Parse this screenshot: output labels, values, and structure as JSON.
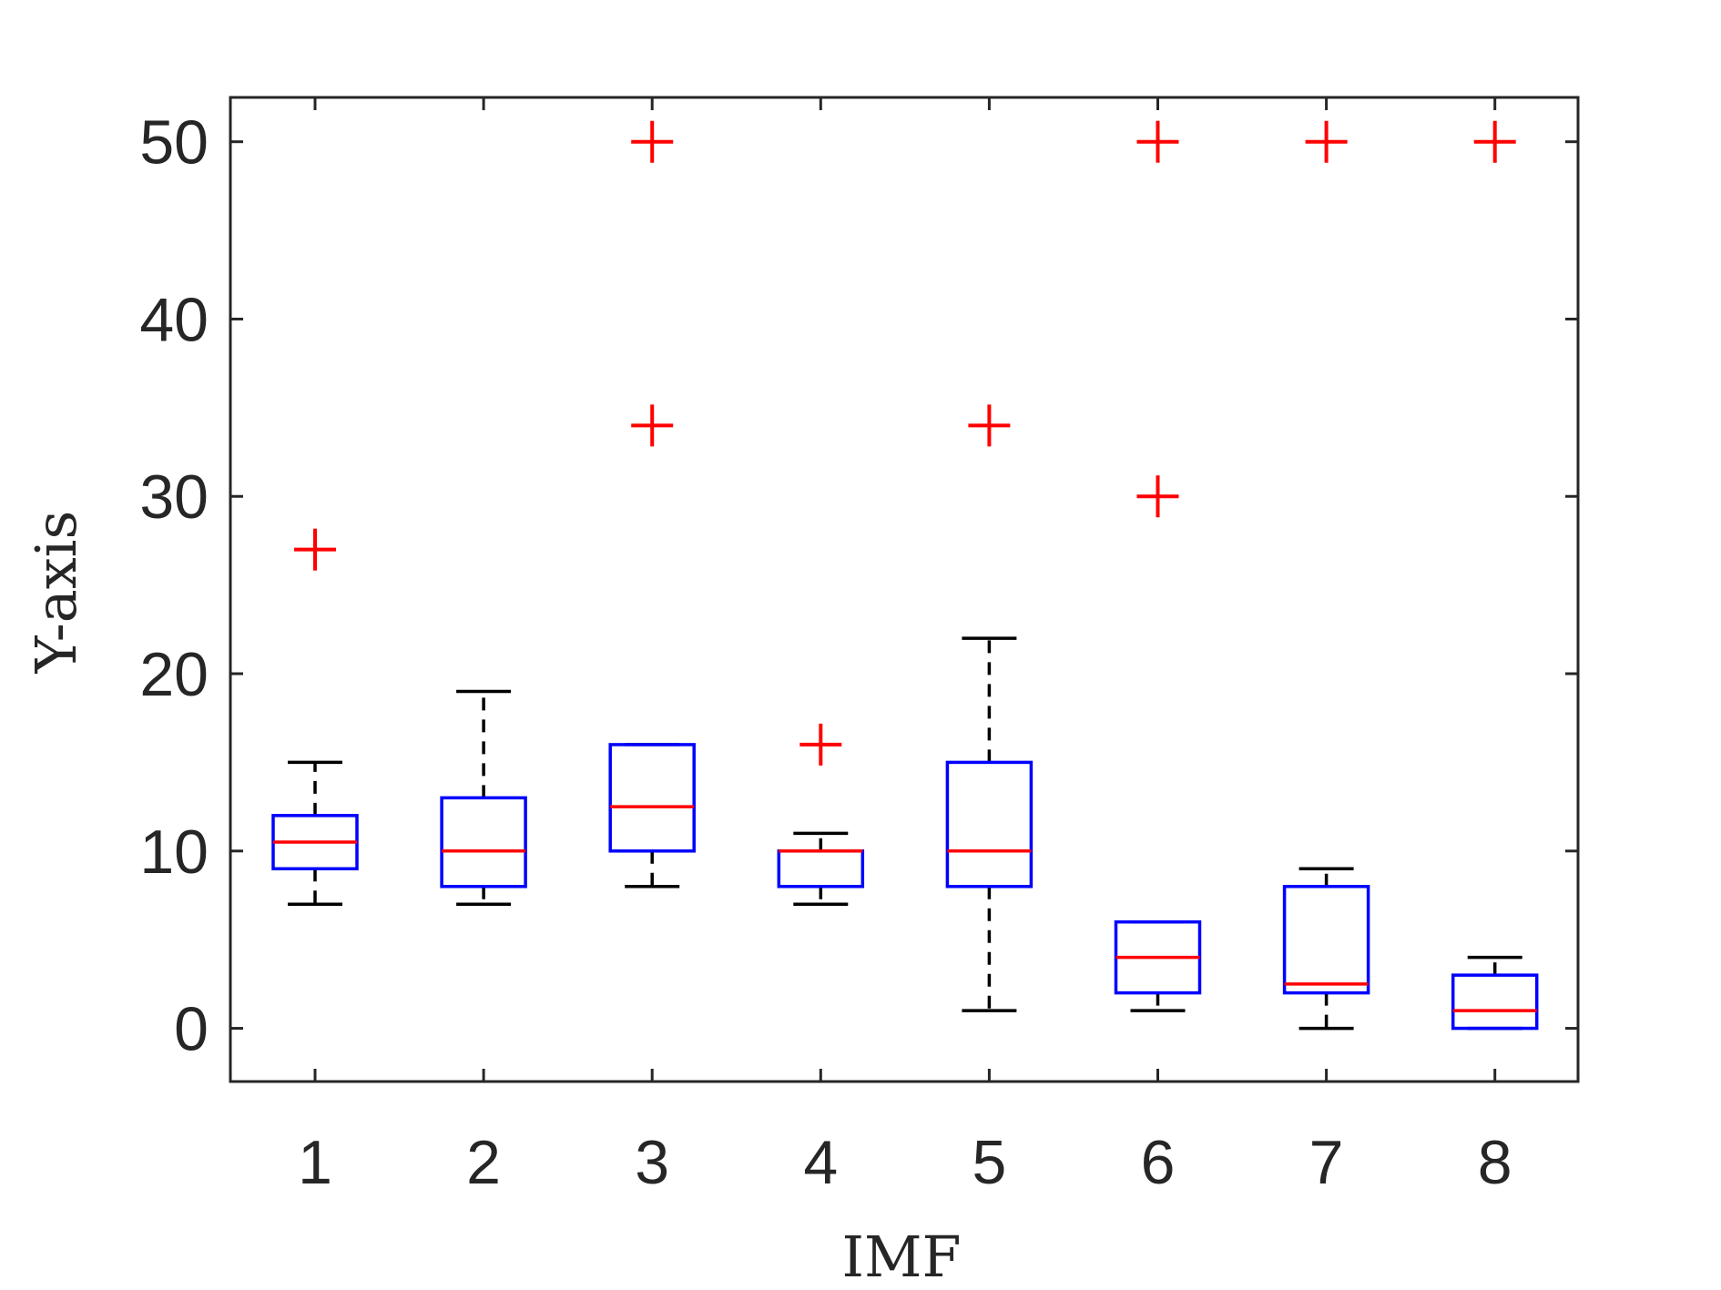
{
  "chart_data": {
    "type": "box",
    "xlabel": "IMF",
    "ylabel": "Y-axis",
    "categories": [
      "1",
      "2",
      "3",
      "4",
      "5",
      "6",
      "7",
      "8"
    ],
    "ylim": [
      -3,
      52.5
    ],
    "yticks": [
      0,
      10,
      20,
      30,
      40,
      50
    ],
    "grid": false,
    "colors": {
      "box": "#0000ff",
      "median": "#ff0000",
      "whisker": "#000000",
      "outlier": "#ff0000",
      "axis": "#262626"
    },
    "boxes": [
      {
        "category": "1",
        "whisker_low": 7,
        "q1": 9,
        "median": 10.5,
        "q3": 12,
        "whisker_high": 15,
        "outliers": [
          27
        ]
      },
      {
        "category": "2",
        "whisker_low": 7,
        "q1": 8,
        "median": 10,
        "q3": 13,
        "whisker_high": 19,
        "outliers": []
      },
      {
        "category": "3",
        "whisker_low": 8,
        "q1": 10,
        "median": 12.5,
        "q3": 16,
        "whisker_high": 16,
        "outliers": [
          34,
          50
        ]
      },
      {
        "category": "4",
        "whisker_low": 7,
        "q1": 8,
        "median": 10,
        "q3": 10,
        "whisker_high": 11,
        "outliers": [
          16
        ]
      },
      {
        "category": "5",
        "whisker_low": 1,
        "q1": 8,
        "median": 10,
        "q3": 15,
        "whisker_high": 22,
        "outliers": [
          34
        ]
      },
      {
        "category": "6",
        "whisker_low": 1,
        "q1": 2,
        "median": 4,
        "q3": 6,
        "whisker_high": 6,
        "outliers": [
          30,
          50
        ]
      },
      {
        "category": "7",
        "whisker_low": 0,
        "q1": 2,
        "median": 2.5,
        "q3": 8,
        "whisker_high": 9,
        "outliers": [
          50
        ]
      },
      {
        "category": "8",
        "whisker_low": 0,
        "q1": 0,
        "median": 1,
        "q3": 3,
        "whisker_high": 4,
        "outliers": [
          50
        ]
      }
    ]
  }
}
